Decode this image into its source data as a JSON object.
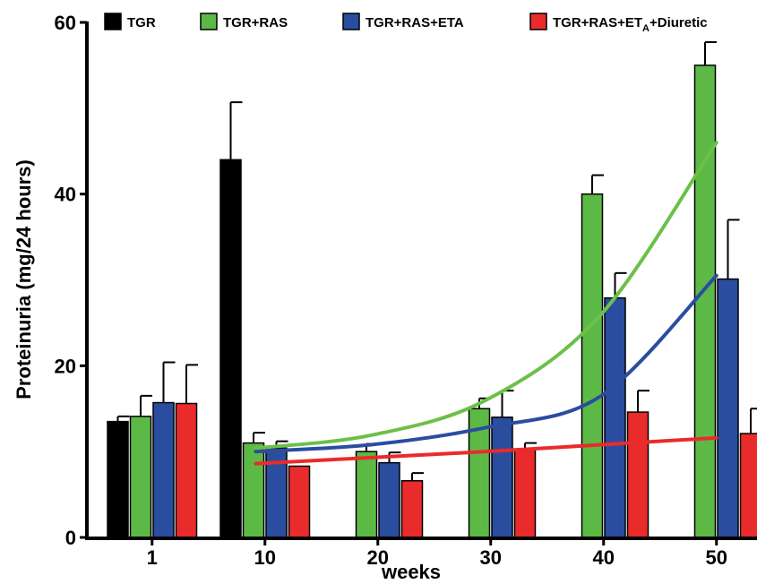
{
  "chart_data": {
    "type": "bar",
    "title": "",
    "xlabel": "weeks",
    "ylabel": "Proteinuria (mg/24 hours)",
    "ylim": [
      0,
      60
    ],
    "yticks": [
      0,
      20,
      40,
      60
    ],
    "categories": [
      "1",
      "10",
      "20",
      "30",
      "40",
      "50"
    ],
    "legend_position": "top",
    "series": [
      {
        "name": "TGR",
        "color": "#000000",
        "values": [
          13.5,
          44,
          null,
          null,
          null,
          null
        ],
        "errors": [
          0.6,
          6.7,
          null,
          null,
          null,
          null
        ]
      },
      {
        "name": "TGR+RAS",
        "color": "#5cb946",
        "values": [
          14.1,
          11.0,
          10.0,
          15.0,
          40.0,
          55.0
        ],
        "errors": [
          2.4,
          1.2,
          0.9,
          1.2,
          2.2,
          2.7
        ]
      },
      {
        "name": "TGR+RAS+ETA",
        "color": "#2a4da0",
        "values": [
          15.7,
          10.4,
          8.7,
          14.0,
          27.9,
          30.1
        ],
        "errors": [
          4.7,
          0.8,
          1.2,
          3.1,
          2.9,
          6.9
        ]
      },
      {
        "name": "TGR+RAS+ETA+Diuretic",
        "name_parts": [
          "TGR+RAS+ET",
          "A",
          "+Diuretic"
        ],
        "color": "#ea2b2b",
        "values": [
          15.6,
          8.3,
          6.6,
          10.3,
          14.6,
          12.1
        ],
        "errors": [
          4.5,
          null,
          0.9,
          0.7,
          2.5,
          2.9
        ]
      }
    ],
    "trend_lines": [
      {
        "series": "TGR+RAS",
        "color": "#6cc04a",
        "points": [
          [
            10,
            10.4
          ],
          [
            20,
            11.9
          ],
          [
            30,
            16.0
          ],
          [
            40,
            26.0
          ],
          [
            50,
            46.0
          ]
        ]
      },
      {
        "series": "TGR+RAS+ETA",
        "color": "#2a4da0",
        "points": [
          [
            10,
            10.0
          ],
          [
            20,
            10.8
          ],
          [
            30,
            12.8
          ],
          [
            40,
            16.5
          ],
          [
            50,
            30.5
          ]
        ]
      },
      {
        "series": "TGR+RAS+ETA+Diuretic",
        "color": "#ea2b2b",
        "points": [
          [
            10,
            8.6
          ],
          [
            20,
            9.3
          ],
          [
            30,
            10.0
          ],
          [
            40,
            10.8
          ],
          [
            50,
            11.6
          ]
        ]
      }
    ]
  }
}
